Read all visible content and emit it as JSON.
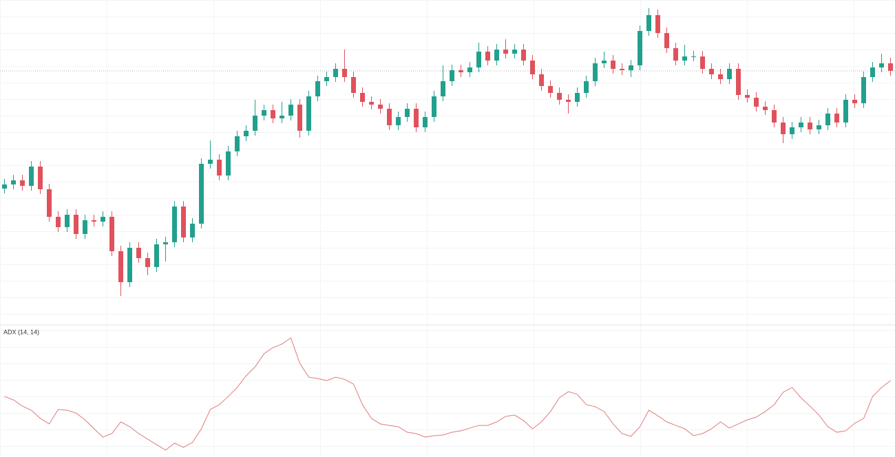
{
  "chart_data": [
    {
      "type": "candlestick",
      "up_color": "#22a08e",
      "down_color": "#e0515c",
      "ylim": [
        0,
        470
      ],
      "open": [
        196,
        202,
        208,
        200,
        228,
        195,
        155,
        140,
        158,
        130,
        150,
        148,
        155,
        105,
        60,
        110,
        95,
        82,
        115,
        118,
        170,
        125,
        145,
        232,
        238,
        215,
        250,
        272,
        280,
        302,
        310,
        298,
        302,
        318,
        280,
        330,
        352,
        358,
        370,
        358,
        335,
        322,
        318,
        312,
        288,
        300,
        312,
        285,
        300,
        330,
        352,
        368,
        365,
        372,
        395,
        382,
        398,
        392,
        398,
        382,
        362,
        345,
        335,
        325,
        322,
        335,
        352,
        378,
        382,
        370,
        368,
        375,
        425,
        448,
        422,
        400,
        382,
        388,
        388,
        370,
        362,
        355,
        370,
        332,
        328,
        315,
        310,
        292,
        275,
        285,
        292,
        282,
        288,
        305,
        292,
        325,
        320,
        358,
        372,
        378
      ],
      "high": [
        210,
        216,
        216,
        236,
        236,
        203,
        163,
        166,
        166,
        158,
        158,
        163,
        163,
        113,
        118,
        118,
        103,
        123,
        126,
        178,
        178,
        153,
        240,
        266,
        246,
        258,
        280,
        288,
        325,
        318,
        318,
        322,
        326,
        326,
        338,
        360,
        366,
        378,
        398,
        366,
        343,
        330,
        326,
        320,
        308,
        320,
        320,
        308,
        338,
        375,
        376,
        376,
        380,
        408,
        403,
        406,
        413,
        406,
        406,
        390,
        370,
        353,
        343,
        333,
        343,
        360,
        386,
        395,
        390,
        378,
        383,
        433,
        458,
        456,
        430,
        408,
        405,
        396,
        396,
        378,
        370,
        378,
        378,
        340,
        336,
        323,
        318,
        300,
        293,
        300,
        300,
        296,
        313,
        313,
        333,
        333,
        366,
        380,
        392,
        386
      ],
      "low": [
        189,
        195,
        193,
        193,
        188,
        148,
        133,
        133,
        123,
        123,
        141,
        141,
        98,
        40,
        53,
        88,
        70,
        75,
        90,
        111,
        118,
        118,
        138,
        225,
        208,
        208,
        243,
        265,
        273,
        295,
        291,
        291,
        295,
        270,
        273,
        323,
        345,
        351,
        351,
        328,
        315,
        311,
        305,
        281,
        281,
        293,
        278,
        278,
        293,
        323,
        345,
        358,
        358,
        365,
        375,
        375,
        385,
        385,
        375,
        355,
        338,
        328,
        318,
        305,
        315,
        328,
        345,
        371,
        363,
        361,
        358,
        368,
        418,
        415,
        393,
        375,
        375,
        381,
        363,
        355,
        348,
        348,
        325,
        321,
        308,
        303,
        285,
        262,
        268,
        278,
        275,
        275,
        281,
        285,
        285,
        313,
        313,
        351,
        365,
        360
      ],
      "close": [
        202,
        208,
        200,
        228,
        195,
        155,
        140,
        158,
        130,
        150,
        148,
        155,
        105,
        60,
        110,
        95,
        82,
        115,
        118,
        170,
        125,
        145,
        232,
        238,
        215,
        250,
        272,
        280,
        302,
        310,
        298,
        302,
        318,
        280,
        330,
        352,
        358,
        370,
        358,
        335,
        322,
        318,
        312,
        288,
        300,
        312,
        285,
        300,
        330,
        352,
        368,
        365,
        372,
        395,
        382,
        398,
        392,
        398,
        382,
        362,
        345,
        335,
        325,
        322,
        335,
        352,
        378,
        382,
        370,
        368,
        375,
        425,
        448,
        422,
        400,
        382,
        388,
        388,
        370,
        362,
        355,
        370,
        332,
        328,
        315,
        310,
        292,
        275,
        285,
        292,
        282,
        288,
        305,
        292,
        325,
        320,
        358,
        372,
        378,
        367
      ]
    },
    {
      "type": "line",
      "title": "ADX (14, 14)",
      "color": "#e07a7a",
      "ylim": [
        0,
        100
      ],
      "values": [
        49.1,
        46.3,
        41.1,
        37.7,
        30.9,
        26.3,
        38.3,
        37.7,
        35.4,
        29.7,
        22.3,
        15.4,
        18.3,
        28.0,
        24.0,
        18.3,
        13.7,
        9.1,
        4.6,
        10.3,
        6.9,
        10.9,
        22.3,
        38.3,
        42.3,
        49.1,
        56.6,
        66.3,
        73.7,
        84.6,
        89.7,
        92.6,
        97.7,
        76.6,
        65.1,
        64.0,
        62.3,
        65.1,
        63.4,
        59.4,
        42.3,
        30.9,
        26.3,
        25.1,
        24.0,
        19.4,
        18.3,
        15.4,
        16.6,
        17.1,
        19.4,
        20.6,
        22.9,
        25.1,
        25.1,
        28.0,
        32.6,
        33.7,
        29.1,
        22.3,
        28.0,
        36.6,
        48.0,
        53.1,
        50.9,
        42.3,
        40.6,
        36.6,
        26.3,
        18.3,
        16.0,
        24.0,
        37.7,
        33.1,
        28.0,
        25.1,
        22.3,
        16.6,
        18.3,
        22.3,
        28.0,
        22.9,
        26.3,
        29.7,
        32.0,
        36.6,
        42.3,
        52.6,
        56.6,
        48.0,
        41.1,
        33.7,
        24.0,
        19.4,
        20.6,
        26.9,
        30.9,
        49.1,
        56.6,
        62.3
      ]
    }
  ]
}
